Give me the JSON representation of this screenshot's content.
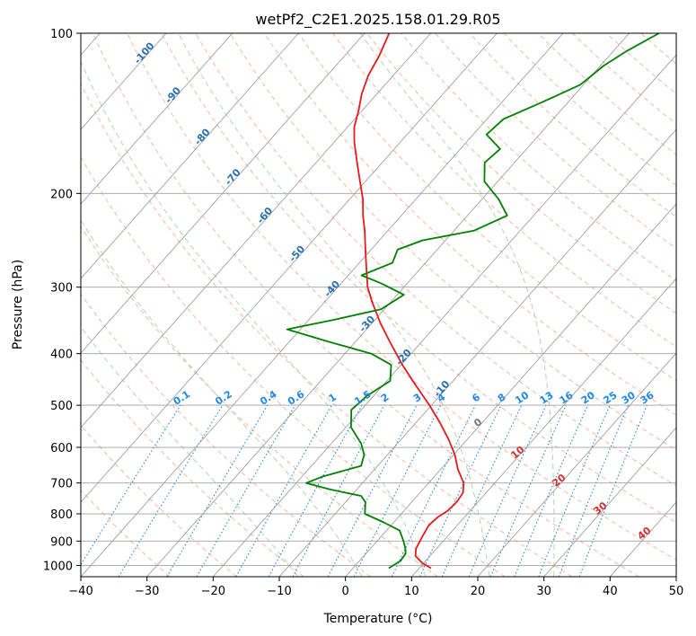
{
  "chart_data": {
    "type": "line",
    "subtype": "skew-t log-p diagram",
    "title": "wetPf2_C2E1.2025.158.01.29.R05",
    "xlabel": "Temperature (°C)",
    "ylabel": "Pressure (hPa)",
    "xlim": [
      -40,
      50
    ],
    "ylim": [
      1050,
      100
    ],
    "y_scale": "log",
    "x_ticks": [
      "−40",
      "−30",
      "−20",
      "−10",
      "0",
      "10",
      "20",
      "30",
      "40",
      "50"
    ],
    "x_tick_values": [
      -40,
      -30,
      -20,
      -10,
      0,
      10,
      20,
      30,
      40,
      50
    ],
    "y_ticks": [
      "100",
      "200",
      "300",
      "400",
      "500",
      "600",
      "700",
      "800",
      "900",
      "1000"
    ],
    "y_tick_values": [
      100,
      200,
      300,
      400,
      500,
      600,
      700,
      800,
      900,
      1000
    ],
    "grid": "horizontal at pressure ticks",
    "background_lines": {
      "isotherms_color": "#a0a0a0",
      "dry_adiabats_color": "#f4a582",
      "moist_adiabats_color": "#a6d4a6",
      "mixing_ratio_color": "#1e88e5",
      "isotherm_values": [
        -120,
        -110,
        -100,
        -90,
        -80,
        -70,
        -60,
        -50,
        -40,
        -30,
        -20,
        -10,
        0,
        10,
        20,
        30,
        40,
        50
      ],
      "dry_adiabat_theta_c": [
        -30,
        -20,
        -10,
        0,
        10,
        20,
        30,
        40,
        50,
        60,
        70,
        80,
        90,
        100,
        110,
        120,
        130,
        140,
        150,
        160,
        170,
        180,
        190,
        200
      ],
      "moist_adiabat_start_c": [
        -10,
        0,
        10,
        20,
        30
      ],
      "mixing_ratio_values": [
        0.1,
        0.2,
        0.4,
        0.6,
        1,
        1.5,
        2,
        3,
        4,
        6,
        8,
        10,
        13,
        16,
        20,
        25,
        30,
        36
      ]
    },
    "dry_adiabat_labels": [
      {
        "text": "-100",
        "t": -100,
        "p": 110
      },
      {
        "text": "-90",
        "t": -90,
        "p": 132
      },
      {
        "text": "-80",
        "t": -80,
        "p": 158
      },
      {
        "text": "-70",
        "t": -70,
        "p": 188
      },
      {
        "text": "-60",
        "t": -60,
        "p": 222
      },
      {
        "text": "-50",
        "t": -50,
        "p": 262
      },
      {
        "text": "-40",
        "t": -40,
        "p": 305
      },
      {
        "text": "-30",
        "t": -30,
        "p": 355
      },
      {
        "text": "-20",
        "t": -20,
        "p": 410
      },
      {
        "text": "-10",
        "t": -10,
        "p": 470
      }
    ],
    "mixing_ratio_labels": [
      "0.1",
      "0.2",
      "0.4",
      "0.6",
      "1",
      "1.5",
      "2",
      "3",
      "4",
      "6",
      "8",
      "10",
      "13",
      "16",
      "20",
      "25",
      "30",
      "36"
    ],
    "mixing_ratio_label_pressure": 490,
    "moist_adiabat_labels": [
      {
        "text": "0",
        "t": 0,
        "p": 545,
        "style": "zero"
      },
      {
        "text": "10",
        "t": 10,
        "p": 620,
        "style": "moist"
      },
      {
        "text": "20",
        "t": 20,
        "p": 700,
        "style": "moist"
      },
      {
        "text": "30",
        "t": 30,
        "p": 790,
        "style": "moist"
      },
      {
        "text": "40",
        "t": 40,
        "p": 880,
        "style": "moist"
      }
    ],
    "series": [
      {
        "name": "Temperature",
        "color": "#e41a1c",
        "points": [
          {
            "p": 1012,
            "t": 11.8
          },
          {
            "p": 990,
            "t": 9.8
          },
          {
            "p": 960,
            "t": 7.8
          },
          {
            "p": 930,
            "t": 6.9
          },
          {
            "p": 880,
            "t": 6.2
          },
          {
            "p": 840,
            "t": 5.7
          },
          {
            "p": 810,
            "t": 6.0
          },
          {
            "p": 790,
            "t": 6.6
          },
          {
            "p": 760,
            "t": 6.8
          },
          {
            "p": 730,
            "t": 6.5
          },
          {
            "p": 700,
            "t": 5.3
          },
          {
            "p": 660,
            "t": 2.6
          },
          {
            "p": 620,
            "t": 0.2
          },
          {
            "p": 580,
            "t": -2.8
          },
          {
            "p": 540,
            "t": -6.3
          },
          {
            "p": 500,
            "t": -10.3
          },
          {
            "p": 460,
            "t": -14.9
          },
          {
            "p": 420,
            "t": -19.8
          },
          {
            "p": 380,
            "t": -24.8
          },
          {
            "p": 350,
            "t": -28.8
          },
          {
            "p": 320,
            "t": -32.8
          },
          {
            "p": 300,
            "t": -35.5
          },
          {
            "p": 285,
            "t": -37.2
          },
          {
            "p": 265,
            "t": -39.6
          },
          {
            "p": 250,
            "t": -41.5
          },
          {
            "p": 235,
            "t": -43.5
          },
          {
            "p": 220,
            "t": -45.8
          },
          {
            "p": 205,
            "t": -48.0
          },
          {
            "p": 190,
            "t": -50.8
          },
          {
            "p": 175,
            "t": -53.8
          },
          {
            "p": 160,
            "t": -57.0
          },
          {
            "p": 150,
            "t": -59.0
          },
          {
            "p": 140,
            "t": -60.5
          },
          {
            "p": 130,
            "t": -62.3
          },
          {
            "p": 120,
            "t": -63.8
          },
          {
            "p": 110,
            "t": -64.8
          },
          {
            "p": 100,
            "t": -66.3
          }
        ]
      },
      {
        "name": "Dewpoint",
        "color": "#008000",
        "points": [
          {
            "p": 1012,
            "t": 5.4
          },
          {
            "p": 980,
            "t": 6.2
          },
          {
            "p": 950,
            "t": 6.0
          },
          {
            "p": 930,
            "t": 5.3
          },
          {
            "p": 900,
            "t": 4.0
          },
          {
            "p": 860,
            "t": 2.0
          },
          {
            "p": 830,
            "t": -1.5
          },
          {
            "p": 800,
            "t": -5.5
          },
          {
            "p": 760,
            "t": -7.0
          },
          {
            "p": 740,
            "t": -8.5
          },
          {
            "p": 720,
            "t": -14.0
          },
          {
            "p": 700,
            "t": -18.5
          },
          {
            "p": 680,
            "t": -16.8
          },
          {
            "p": 650,
            "t": -12.5
          },
          {
            "p": 620,
            "t": -13.5
          },
          {
            "p": 590,
            "t": -15.5
          },
          {
            "p": 550,
            "t": -19.2
          },
          {
            "p": 510,
            "t": -21.5
          },
          {
            "p": 480,
            "t": -21.0
          },
          {
            "p": 450,
            "t": -19.5
          },
          {
            "p": 420,
            "t": -21.5
          },
          {
            "p": 400,
            "t": -26.0
          },
          {
            "p": 380,
            "t": -34.0
          },
          {
            "p": 360,
            "t": -42.0
          },
          {
            "p": 345,
            "t": -36.0
          },
          {
            "p": 330,
            "t": -30.5
          },
          {
            "p": 310,
            "t": -29.0
          },
          {
            "p": 295,
            "t": -34.0
          },
          {
            "p": 285,
            "t": -38.0
          },
          {
            "p": 270,
            "t": -35.0
          },
          {
            "p": 255,
            "t": -36.0
          },
          {
            "p": 245,
            "t": -33.5
          },
          {
            "p": 235,
            "t": -27.0
          },
          {
            "p": 220,
            "t": -24.0
          },
          {
            "p": 205,
            "t": -27.5
          },
          {
            "p": 190,
            "t": -32.0
          },
          {
            "p": 175,
            "t": -34.5
          },
          {
            "p": 165,
            "t": -34.0
          },
          {
            "p": 155,
            "t": -38.0
          },
          {
            "p": 145,
            "t": -37.5
          },
          {
            "p": 135,
            "t": -34.0
          },
          {
            "p": 125,
            "t": -30.5
          },
          {
            "p": 115,
            "t": -29.5
          },
          {
            "p": 108,
            "t": -28.0
          },
          {
            "p": 100,
            "t": -25.5
          }
        ]
      }
    ]
  }
}
